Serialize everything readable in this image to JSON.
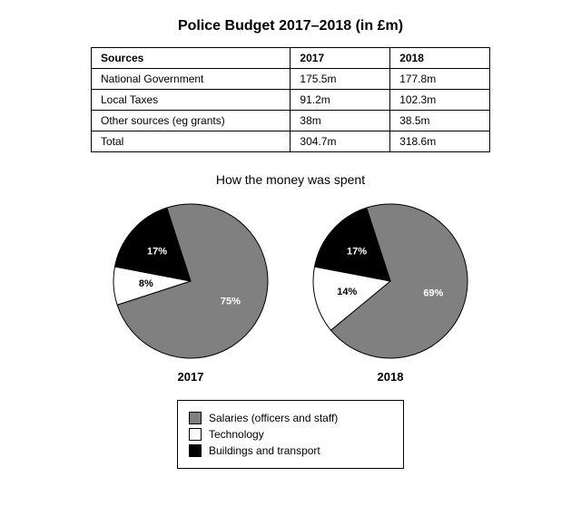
{
  "page_title": "Police Budget 2017–2018 (in £m)",
  "table": {
    "columns": [
      "Sources",
      "2017",
      "2018"
    ],
    "rows": [
      [
        "National Government",
        "175.5m",
        "177.8m"
      ],
      [
        "Local Taxes",
        "91.2m",
        "102.3m"
      ],
      [
        "Other sources (eg grants)",
        "38m",
        "38.5m"
      ],
      [
        "Total",
        "304.7m",
        "318.6m"
      ]
    ],
    "border_color": "#000000",
    "font_size_pt": 12
  },
  "spend_title": "How the money was spent",
  "pies": {
    "radius": 85,
    "stroke_color": "#000000",
    "2017": {
      "year_label": "2017",
      "slices": [
        {
          "name": "salaries",
          "value": 75,
          "label": "75%",
          "color": "#808080",
          "text_color": "#ffffff"
        },
        {
          "name": "technology",
          "value": 8,
          "label": "8%",
          "color": "#ffffff",
          "text_color": "#000000"
        },
        {
          "name": "buildings",
          "value": 17,
          "label": "17%",
          "color": "#000000",
          "text_color": "#ffffff"
        }
      ]
    },
    "2018": {
      "year_label": "2018",
      "slices": [
        {
          "name": "salaries",
          "value": 69,
          "label": "69%",
          "color": "#808080",
          "text_color": "#ffffff"
        },
        {
          "name": "technology",
          "value": 14,
          "label": "14%",
          "color": "#ffffff",
          "text_color": "#000000"
        },
        {
          "name": "buildings",
          "value": 17,
          "label": "17%",
          "color": "#000000",
          "text_color": "#ffffff"
        }
      ]
    },
    "start_angle_deg": -18
  },
  "legend": {
    "items": [
      {
        "label": "Salaries (officers and staff)",
        "color": "#808080"
      },
      {
        "label": "Technology",
        "color": "#ffffff"
      },
      {
        "label": "Buildings and transport",
        "color": "#000000"
      }
    ],
    "border_color": "#000000",
    "font_size_pt": 12
  },
  "colors": {
    "background": "#ffffff",
    "text": "#000000"
  }
}
